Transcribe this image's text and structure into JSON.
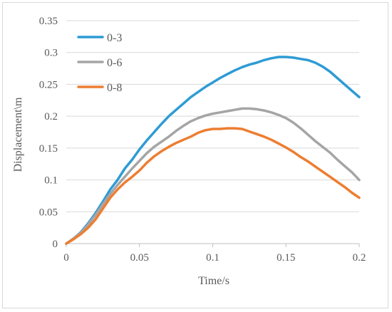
{
  "chart_data": {
    "type": "line",
    "xlabel": "Time/s",
    "ylabel": "Displacement\\m",
    "xlim": [
      0,
      0.2
    ],
    "ylim": [
      0,
      0.35
    ],
    "x_ticks": [
      "0",
      "0.05",
      "0.1",
      "0.15",
      "0.2"
    ],
    "y_ticks": [
      "0",
      "0.05",
      "0.1",
      "0.15",
      "0.2",
      "0.25",
      "0.3",
      "0.35"
    ],
    "grid": "horizontal",
    "legend_position": "top-left",
    "series": [
      {
        "name": "0-3",
        "color": "#2e9bd4",
        "x": [
          0,
          0.005,
          0.01,
          0.015,
          0.02,
          0.025,
          0.03,
          0.035,
          0.04,
          0.045,
          0.05,
          0.055,
          0.06,
          0.065,
          0.07,
          0.075,
          0.08,
          0.085,
          0.09,
          0.095,
          0.1,
          0.105,
          0.11,
          0.115,
          0.12,
          0.125,
          0.13,
          0.135,
          0.14,
          0.145,
          0.15,
          0.155,
          0.16,
          0.165,
          0.17,
          0.175,
          0.18,
          0.185,
          0.19,
          0.195,
          0.2
        ],
        "values": [
          0,
          0.008,
          0.018,
          0.032,
          0.048,
          0.066,
          0.085,
          0.1,
          0.118,
          0.132,
          0.148,
          0.162,
          0.175,
          0.188,
          0.2,
          0.21,
          0.22,
          0.23,
          0.238,
          0.246,
          0.253,
          0.26,
          0.266,
          0.272,
          0.277,
          0.281,
          0.284,
          0.288,
          0.291,
          0.293,
          0.293,
          0.292,
          0.29,
          0.288,
          0.284,
          0.278,
          0.27,
          0.26,
          0.25,
          0.24,
          0.23
        ]
      },
      {
        "name": "0-6",
        "color": "#a5a5a5",
        "x": [
          0,
          0.005,
          0.01,
          0.015,
          0.02,
          0.025,
          0.03,
          0.035,
          0.04,
          0.045,
          0.05,
          0.055,
          0.06,
          0.065,
          0.07,
          0.075,
          0.08,
          0.085,
          0.09,
          0.095,
          0.1,
          0.105,
          0.11,
          0.115,
          0.12,
          0.125,
          0.13,
          0.135,
          0.14,
          0.145,
          0.15,
          0.155,
          0.16,
          0.165,
          0.17,
          0.175,
          0.18,
          0.185,
          0.19,
          0.195,
          0.2
        ],
        "values": [
          0,
          0.008,
          0.017,
          0.03,
          0.045,
          0.062,
          0.078,
          0.092,
          0.105,
          0.118,
          0.13,
          0.142,
          0.152,
          0.16,
          0.168,
          0.177,
          0.185,
          0.192,
          0.197,
          0.201,
          0.204,
          0.206,
          0.208,
          0.21,
          0.212,
          0.212,
          0.211,
          0.209,
          0.206,
          0.202,
          0.197,
          0.19,
          0.181,
          0.171,
          0.161,
          0.152,
          0.143,
          0.132,
          0.122,
          0.112,
          0.1
        ]
      },
      {
        "name": "0-8",
        "color": "#ed7d31",
        "x": [
          0,
          0.005,
          0.01,
          0.015,
          0.02,
          0.025,
          0.03,
          0.035,
          0.04,
          0.045,
          0.05,
          0.055,
          0.06,
          0.065,
          0.07,
          0.075,
          0.08,
          0.085,
          0.09,
          0.095,
          0.1,
          0.105,
          0.11,
          0.115,
          0.12,
          0.125,
          0.13,
          0.135,
          0.14,
          0.145,
          0.15,
          0.155,
          0.16,
          0.165,
          0.17,
          0.175,
          0.18,
          0.185,
          0.19,
          0.195,
          0.2
        ],
        "values": [
          0,
          0.007,
          0.015,
          0.025,
          0.038,
          0.055,
          0.072,
          0.085,
          0.096,
          0.105,
          0.115,
          0.127,
          0.137,
          0.145,
          0.152,
          0.158,
          0.163,
          0.168,
          0.174,
          0.178,
          0.18,
          0.18,
          0.181,
          0.181,
          0.18,
          0.176,
          0.172,
          0.168,
          0.163,
          0.157,
          0.151,
          0.144,
          0.136,
          0.129,
          0.121,
          0.113,
          0.105,
          0.097,
          0.089,
          0.08,
          0.072
        ]
      }
    ]
  }
}
